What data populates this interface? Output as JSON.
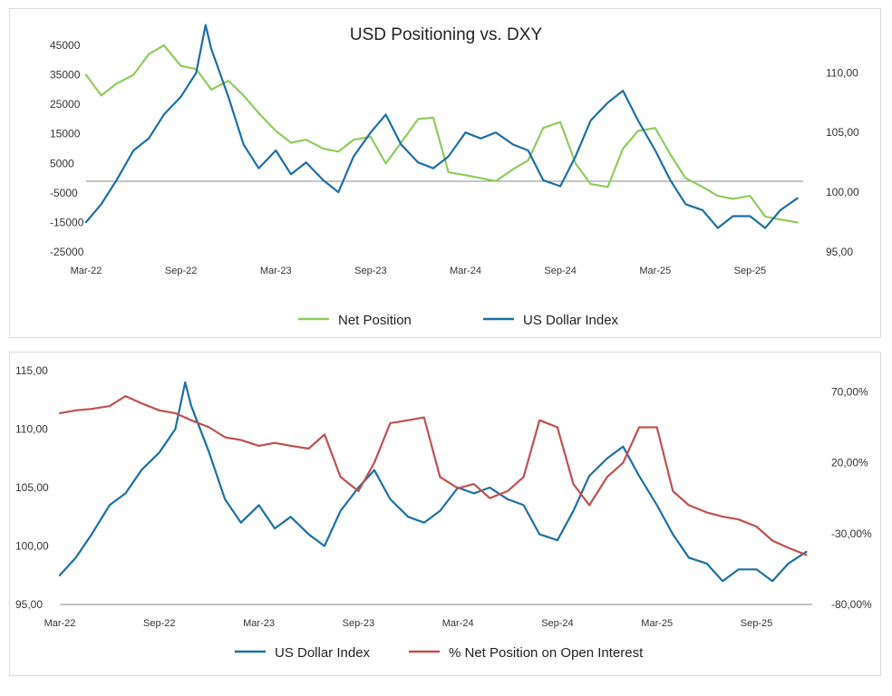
{
  "colors": {
    "net_position": "#8dcc5c",
    "us_dollar_index": "#1c6fa6",
    "pct_net_position": "#c0504d",
    "axis": "#888888"
  },
  "chart_data": [
    {
      "type": "line",
      "title": "USD Positioning vs. DXY",
      "x_ticks": [
        "Mar-22",
        "Sep-22",
        "Mar-23",
        "Sep-23",
        "Mar-24",
        "Sep-24",
        "Mar-25",
        "Sep-25"
      ],
      "x_range": [
        "Mar-22",
        "Dec-25"
      ],
      "y_left": {
        "ticks": [
          "45000",
          "35000",
          "25000",
          "15000",
          "5000",
          "-5000",
          "-15000",
          "-25000"
        ],
        "range": [
          -25000,
          45000
        ]
      },
      "y_right": {
        "ticks": [
          "110,00",
          "105,00",
          "100,00",
          "95,00"
        ],
        "range": [
          95,
          112.3
        ]
      },
      "legend_position": "bottom",
      "grid": false,
      "series": [
        {
          "name": "Net Position",
          "axis": "left",
          "color": "#8dcc5c",
          "x": [
            2022.17,
            2022.25,
            2022.33,
            2022.42,
            2022.5,
            2022.58,
            2022.67,
            2022.75,
            2022.83,
            2022.92,
            2023.0,
            2023.08,
            2023.17,
            2023.25,
            2023.33,
            2023.42,
            2023.5,
            2023.58,
            2023.67,
            2023.75,
            2023.83,
            2023.92,
            2024.0,
            2024.08,
            2024.17,
            2024.25,
            2024.33,
            2024.42,
            2024.5,
            2024.58,
            2024.67,
            2024.75,
            2024.83,
            2024.92,
            2025.0,
            2025.08,
            2025.17,
            2025.25,
            2025.33,
            2025.42,
            2025.5,
            2025.58,
            2025.67,
            2025.75,
            2025.83,
            2025.92
          ],
          "values": [
            35000,
            28000,
            32000,
            35000,
            42000,
            45000,
            38000,
            37000,
            30000,
            33000,
            28000,
            22000,
            16000,
            12000,
            13000,
            10000,
            9000,
            13000,
            14000,
            5000,
            12000,
            20000,
            20500,
            2000,
            1000,
            0,
            -1000,
            3000,
            6000,
            17000,
            19000,
            5000,
            -2000,
            -3000,
            10000,
            16000,
            17000,
            8000,
            0,
            -3000,
            -6000,
            -7000,
            -6000,
            -13000,
            -14000,
            -15000
          ]
        },
        {
          "name": "US Dollar Index",
          "axis": "right",
          "color": "#1c6fa6",
          "x": [
            2022.17,
            2022.25,
            2022.33,
            2022.42,
            2022.5,
            2022.58,
            2022.67,
            2022.75,
            2022.8,
            2022.83,
            2022.92,
            2023.0,
            2023.08,
            2023.17,
            2023.25,
            2023.33,
            2023.42,
            2023.5,
            2023.58,
            2023.67,
            2023.75,
            2023.83,
            2023.92,
            2024.0,
            2024.08,
            2024.17,
            2024.25,
            2024.33,
            2024.42,
            2024.5,
            2024.58,
            2024.67,
            2024.75,
            2024.83,
            2024.92,
            2025.0,
            2025.08,
            2025.17,
            2025.25,
            2025.33,
            2025.42,
            2025.5,
            2025.58,
            2025.67,
            2025.75,
            2025.83,
            2025.92
          ],
          "values": [
            97.5,
            99,
            101,
            103.5,
            104.5,
            106.5,
            108,
            110,
            114,
            112,
            108,
            104,
            102,
            103.5,
            101.5,
            102.5,
            101,
            100,
            103,
            105,
            106.5,
            104,
            102.5,
            102,
            103,
            105,
            104.5,
            105,
            104,
            103.5,
            101,
            100.5,
            103,
            106,
            107.5,
            108.5,
            106,
            103.5,
            101,
            99,
            98.5,
            97,
            98,
            98,
            97,
            98.5,
            99.5
          ]
        }
      ]
    },
    {
      "type": "line",
      "title": "",
      "x_ticks": [
        "Mar-22",
        "Sep-22",
        "Mar-23",
        "Sep-23",
        "Mar-24",
        "Sep-24",
        "Mar-25",
        "Sep-25"
      ],
      "x_range": [
        "Mar-22",
        "Dec-25"
      ],
      "y_left": {
        "ticks": [
          "115,00",
          "110,00",
          "105,00",
          "100,00",
          "95,00"
        ],
        "range": [
          95,
          115
        ]
      },
      "y_right": {
        "ticks": [
          "70,00%",
          "20,00%",
          "-30,00%",
          "-80,00%"
        ],
        "range": [
          -80,
          85
        ]
      },
      "legend_position": "bottom",
      "grid": false,
      "series": [
        {
          "name": "US Dollar Index",
          "axis": "left",
          "color": "#1c6fa6",
          "x": [
            2022.17,
            2022.25,
            2022.33,
            2022.42,
            2022.5,
            2022.58,
            2022.67,
            2022.75,
            2022.8,
            2022.83,
            2022.92,
            2023.0,
            2023.08,
            2023.17,
            2023.25,
            2023.33,
            2023.42,
            2023.5,
            2023.58,
            2023.67,
            2023.75,
            2023.83,
            2023.92,
            2024.0,
            2024.08,
            2024.17,
            2024.25,
            2024.33,
            2024.42,
            2024.5,
            2024.58,
            2024.67,
            2024.75,
            2024.83,
            2024.92,
            2025.0,
            2025.08,
            2025.17,
            2025.25,
            2025.33,
            2025.42,
            2025.5,
            2025.58,
            2025.67,
            2025.75,
            2025.83,
            2025.92
          ],
          "values": [
            97.5,
            99,
            101,
            103.5,
            104.5,
            106.5,
            108,
            110,
            114,
            112,
            108,
            104,
            102,
            103.5,
            101.5,
            102.5,
            101,
            100,
            103,
            105,
            106.5,
            104,
            102.5,
            102,
            103,
            105,
            104.5,
            105,
            104,
            103.5,
            101,
            100.5,
            103,
            106,
            107.5,
            108.5,
            106,
            103.5,
            101,
            99,
            98.5,
            97,
            98,
            98,
            97,
            98.5,
            99.5
          ]
        },
        {
          "name": "% Net Position on Open Interest",
          "axis": "right",
          "color": "#c0504d",
          "x": [
            2022.17,
            2022.25,
            2022.33,
            2022.42,
            2022.5,
            2022.58,
            2022.67,
            2022.75,
            2022.83,
            2022.92,
            2023.0,
            2023.08,
            2023.17,
            2023.25,
            2023.33,
            2023.42,
            2023.5,
            2023.58,
            2023.67,
            2023.75,
            2023.83,
            2023.92,
            2024.0,
            2024.08,
            2024.17,
            2024.25,
            2024.33,
            2024.42,
            2024.5,
            2024.58,
            2024.67,
            2024.75,
            2024.83,
            2024.92,
            2025.0,
            2025.08,
            2025.17,
            2025.25,
            2025.33,
            2025.42,
            2025.5,
            2025.58,
            2025.67,
            2025.75,
            2025.83,
            2025.92
          ],
          "values": [
            55,
            57,
            58,
            60,
            67,
            62,
            57,
            55,
            50,
            45,
            38,
            36,
            32,
            34,
            32,
            30,
            40,
            10,
            0,
            20,
            48,
            50,
            52,
            10,
            2,
            5,
            -5,
            0,
            10,
            50,
            45,
            5,
            -10,
            10,
            20,
            45,
            45,
            0,
            -10,
            -15,
            -18,
            -20,
            -25,
            -35,
            -40,
            -45
          ]
        }
      ]
    }
  ],
  "legend_top": {
    "items": [
      "Net Position",
      "US Dollar Index"
    ]
  },
  "legend_bottom": {
    "items": [
      "US Dollar Index",
      "% Net Position on Open Interest"
    ]
  }
}
